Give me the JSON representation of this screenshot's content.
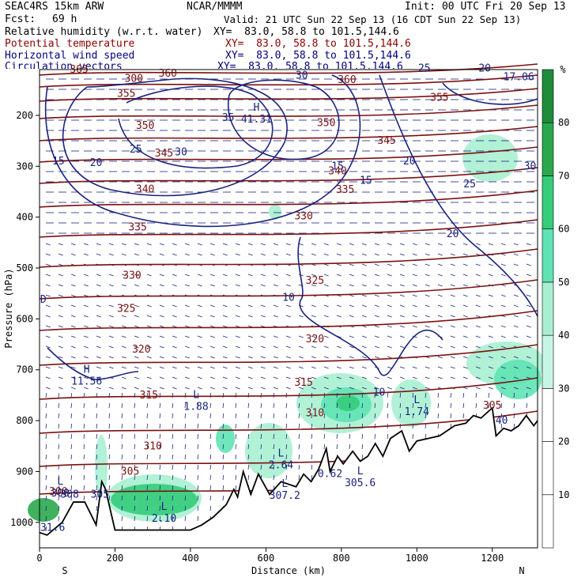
{
  "header": {
    "model": "SEAC4RS 15km ARW",
    "org": "NCAR/MMMM",
    "init": "Init: 00 UTC Fri 20 Sep 13",
    "fcst_label": "Fcst:",
    "fcst_value": "69 h",
    "valid": "Valid: 21 UTC Sun 22 Sep 13 (16 CDT Sun 22 Sep 13)",
    "fields": [
      {
        "name": "Relative humidity (w.r.t. water)",
        "xy": "XY=  83.0, 58.8 to 101.5,144.6"
      },
      {
        "name": "Potential temperature",
        "xy": "XY=  83.0, 58.8 to 101.5,144.6"
      },
      {
        "name": "Horizontal wind speed",
        "xy": "XY=  83.0, 58.8 to 101.5,144.6"
      },
      {
        "name": "Circulation vectors",
        "xy": "XY=  83.0, 58.8 to 101.5,144.6"
      }
    ]
  },
  "colors": {
    "theta": "#7a1010",
    "wind": "#1a237e",
    "vectors": "#1a237e",
    "terrain": "#000000",
    "rh_40_50": "#a8efd2",
    "rh_50_60": "#5fe3b4",
    "rh_60_70": "#35cc7a",
    "rh_70_80": "#2aa84e"
  },
  "chart_data": {
    "type": "contour",
    "xlabel": "Distance (km)",
    "ylabel": "Pressure (hPa)",
    "x_ticks": [
      0,
      200,
      400,
      600,
      800,
      1000,
      1200
    ],
    "y_ticks": [
      200,
      300,
      400,
      500,
      600,
      700,
      800,
      900,
      1000
    ],
    "xlim": [
      0,
      1320
    ],
    "ylim": [
      1050,
      110
    ],
    "left_end_label": "S",
    "right_end_label": "N",
    "colorbar": {
      "unit": "%",
      "ticks": [
        10,
        20,
        30,
        40,
        50,
        60,
        70,
        80
      ]
    },
    "theta_labels": [
      {
        "x": 105,
        "p": 110,
        "text": "365"
      },
      {
        "x": 340,
        "p": 118,
        "text": "360"
      },
      {
        "x": 250,
        "p": 128,
        "text": "300"
      },
      {
        "x": 815,
        "p": 130,
        "text": "360"
      },
      {
        "x": 1060,
        "p": 165,
        "text": "355"
      },
      {
        "x": 230,
        "p": 157,
        "text": "355"
      },
      {
        "x": 280,
        "p": 220,
        "text": "350"
      },
      {
        "x": 760,
        "p": 215,
        "text": "350"
      },
      {
        "x": 920,
        "p": 250,
        "text": "345"
      },
      {
        "x": 330,
        "p": 275,
        "text": "345"
      },
      {
        "x": 790,
        "p": 310,
        "text": "340"
      },
      {
        "x": 280,
        "p": 345,
        "text": "340"
      },
      {
        "x": 810,
        "p": 346,
        "text": "335"
      },
      {
        "x": 260,
        "p": 420,
        "text": "335"
      },
      {
        "x": 700,
        "p": 398,
        "text": "330"
      },
      {
        "x": 245,
        "p": 515,
        "text": "330"
      },
      {
        "x": 730,
        "p": 525,
        "text": "325"
      },
      {
        "x": 230,
        "p": 580,
        "text": "325"
      },
      {
        "x": 730,
        "p": 640,
        "text": "320"
      },
      {
        "x": 270,
        "p": 660,
        "text": "320"
      },
      {
        "x": 700,
        "p": 725,
        "text": "315"
      },
      {
        "x": 290,
        "p": 750,
        "text": "315"
      },
      {
        "x": 730,
        "p": 785,
        "text": "310"
      },
      {
        "x": 300,
        "p": 850,
        "text": "310"
      },
      {
        "x": 240,
        "p": 900,
        "text": "305"
      },
      {
        "x": 1200,
        "p": 770,
        "text": "305"
      },
      {
        "x": 50,
        "p": 940,
        "text": "300"
      }
    ],
    "wind_labels": [
      {
        "x": 50,
        "p": 290,
        "text": "15"
      },
      {
        "x": 150,
        "p": 293,
        "text": "20"
      },
      {
        "x": 255,
        "p": 267,
        "text": "25"
      },
      {
        "x": 375,
        "p": 272,
        "text": "30"
      },
      {
        "x": 500,
        "p": 205,
        "text": "35"
      },
      {
        "x": 695,
        "p": 122,
        "text": "30"
      },
      {
        "x": 790,
        "p": 300,
        "text": "15"
      },
      {
        "x": 865,
        "p": 328,
        "text": "15"
      },
      {
        "x": 980,
        "p": 290,
        "text": "20"
      },
      {
        "x": 1095,
        "p": 433,
        "text": "20"
      },
      {
        "x": 1140,
        "p": 335,
        "text": "25"
      },
      {
        "x": 1300,
        "p": 300,
        "text": "30"
      },
      {
        "x": 1020,
        "p": 108,
        "text": "25"
      },
      {
        "x": 1180,
        "p": 108,
        "text": "20"
      },
      {
        "x": 660,
        "p": 558,
        "text": "10"
      },
      {
        "x": 900,
        "p": 745,
        "text": "10"
      }
    ],
    "extrema": [
      {
        "x": 575,
        "p": 200,
        "letter": "H",
        "value": "41.31"
      },
      {
        "x": 125,
        "p": 715,
        "letter": "H",
        "value": "11.56"
      },
      {
        "x": 415,
        "p": 765,
        "letter": "L",
        "value": "1.88"
      },
      {
        "x": 1000,
        "p": 775,
        "letter": "L",
        "value": "1.74"
      },
      {
        "x": 640,
        "p": 880,
        "letter": "L",
        "value": "2.64"
      },
      {
        "x": 650,
        "p": 940,
        "letter": "L",
        "value": "307.2"
      },
      {
        "x": 850,
        "p": 915,
        "letter": "L",
        "value": "305.6"
      },
      {
        "x": 330,
        "p": 985,
        "letter": "L",
        "value": "2.10"
      },
      {
        "x": 55,
        "p": 935,
        "letter": "L",
        "value": "300"
      },
      {
        "x": 770,
        "p": 905,
        "letter": "",
        "value": "0.62"
      },
      {
        "x": 1270,
        "p": 125,
        "letter": "",
        "value": "17.06"
      },
      {
        "x": 35,
        "p": 1010,
        "letter": "",
        "value": "31.6"
      },
      {
        "x": 1225,
        "p": 800,
        "letter": "",
        "value": "40"
      },
      {
        "x": 160,
        "p": 945,
        "letter": "",
        "value": "305"
      },
      {
        "x": 80,
        "p": 945,
        "letter": "",
        "value": "308"
      },
      {
        "x": 10,
        "p": 578,
        "letter": "D",
        "value": ""
      }
    ],
    "terrain": [
      [
        0,
        1020
      ],
      [
        20,
        1025
      ],
      [
        60,
        1000
      ],
      [
        90,
        960
      ],
      [
        120,
        960
      ],
      [
        150,
        1005
      ],
      [
        165,
        920
      ],
      [
        175,
        935
      ],
      [
        200,
        1015
      ],
      [
        400,
        1015
      ],
      [
        430,
        1005
      ],
      [
        460,
        990
      ],
      [
        495,
        965
      ],
      [
        515,
        935
      ],
      [
        525,
        950
      ],
      [
        540,
        900
      ],
      [
        560,
        945
      ],
      [
        580,
        905
      ],
      [
        610,
        945
      ],
      [
        640,
        920
      ],
      [
        680,
        930
      ],
      [
        700,
        905
      ],
      [
        720,
        920
      ],
      [
        740,
        895
      ],
      [
        760,
        855
      ],
      [
        770,
        900
      ],
      [
        790,
        870
      ],
      [
        805,
        885
      ],
      [
        830,
        860
      ],
      [
        850,
        880
      ],
      [
        870,
        870
      ],
      [
        890,
        845
      ],
      [
        910,
        870
      ],
      [
        930,
        835
      ],
      [
        960,
        820
      ],
      [
        980,
        860
      ],
      [
        1000,
        840
      ],
      [
        1030,
        835
      ],
      [
        1060,
        830
      ],
      [
        1100,
        810
      ],
      [
        1130,
        805
      ],
      [
        1150,
        790
      ],
      [
        1170,
        795
      ],
      [
        1200,
        775
      ],
      [
        1210,
        830
      ],
      [
        1230,
        815
      ],
      [
        1250,
        820
      ],
      [
        1270,
        810
      ],
      [
        1290,
        790
      ],
      [
        1310,
        810
      ],
      [
        1320,
        800
      ]
    ]
  }
}
